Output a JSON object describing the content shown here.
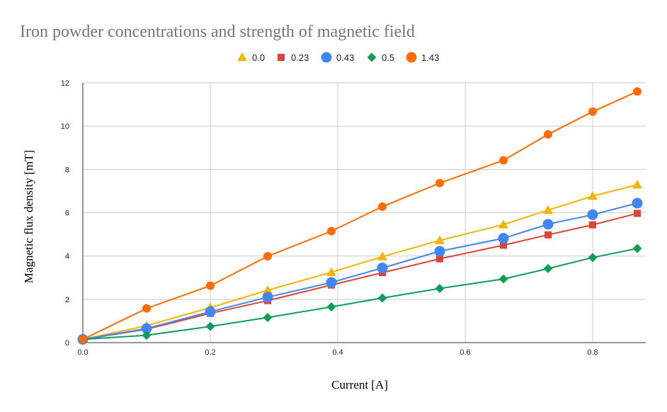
{
  "chart_data": {
    "type": "line",
    "title": "Iron powder concentrations and strength of magnetic field",
    "xlabel": "Current [A]",
    "ylabel": "Magnetic flux density [mT]",
    "xlim": [
      0,
      0.88
    ],
    "ylim": [
      0,
      12
    ],
    "x_ticks": [
      "0.0",
      "0.2",
      "0.4",
      "0.6",
      "0.8"
    ],
    "y_ticks": [
      "0",
      "2",
      "4",
      "6",
      "8",
      "10",
      "12"
    ],
    "grid": true,
    "legend_position": "top",
    "x": [
      0,
      0.1,
      0.2,
      0.29,
      0.39,
      0.47,
      0.56,
      0.66,
      0.73,
      0.8,
      0.87
    ],
    "series": [
      {
        "name": "0.0",
        "color": "#f4b400",
        "marker": "triangle",
        "values": [
          0.15,
          0.78,
          1.62,
          2.42,
          3.25,
          3.97,
          4.72,
          5.45,
          6.12,
          6.77,
          7.29
        ]
      },
      {
        "name": "0.23",
        "color": "#db4437",
        "marker": "square",
        "values": [
          0.15,
          0.62,
          1.35,
          1.94,
          2.66,
          3.23,
          3.87,
          4.5,
          4.98,
          5.44,
          5.97
        ]
      },
      {
        "name": "0.43",
        "color": "#4285f4",
        "marker": "circle",
        "values": [
          0.15,
          0.65,
          1.43,
          2.1,
          2.78,
          3.45,
          4.22,
          4.82,
          5.47,
          5.91,
          6.44
        ]
      },
      {
        "name": "0.5",
        "color": "#0f9d58",
        "marker": "diamond",
        "values": [
          0.15,
          0.34,
          0.75,
          1.16,
          1.65,
          2.06,
          2.5,
          2.94,
          3.42,
          3.93,
          4.35
        ]
      },
      {
        "name": "1.43",
        "color": "#ff6d01",
        "marker": "circle",
        "values": [
          0.15,
          1.58,
          2.63,
          3.99,
          5.15,
          6.28,
          7.37,
          8.42,
          9.62,
          10.67,
          11.6
        ]
      }
    ]
  }
}
